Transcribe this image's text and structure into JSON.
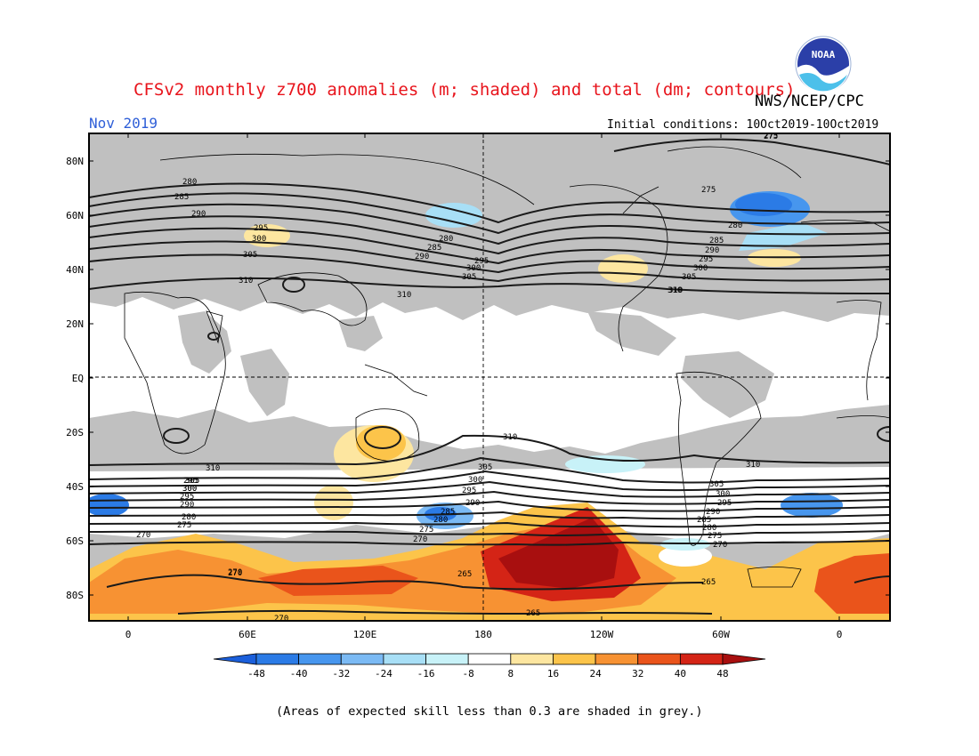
{
  "header": {
    "title": "CFSv2 monthly z700 anomalies (m; shaded) and total (dm; contours)",
    "agency": "NWS/NCEP/CPC",
    "logo_text": "NOAA",
    "month": "Nov 2019",
    "initial_conditions": "Initial conditions: 10Oct2019-10Oct2019"
  },
  "map": {
    "lat_labels": [
      "80N",
      "60N",
      "40N",
      "20N",
      "EQ",
      "20S",
      "40S",
      "60S",
      "80S"
    ],
    "lon_labels": [
      "0",
      "60E",
      "120E",
      "180",
      "120W",
      "60W",
      "0"
    ],
    "contour_levels": [
      265,
      270,
      275,
      280,
      285,
      290,
      295,
      300,
      305,
      310
    ],
    "contour_labels": [
      "275",
      "280",
      "285",
      "290",
      "295",
      "300",
      "305",
      "310",
      "310",
      "310",
      "285",
      "290",
      "295",
      "300",
      "305",
      "280",
      "285",
      "290",
      "295",
      "300",
      "305",
      "310",
      "275",
      "275",
      "280",
      "295",
      "300",
      "305",
      "310",
      "305",
      "300",
      "295",
      "290",
      "280",
      "275",
      "270",
      "270",
      "265",
      "265",
      "265",
      "270",
      "310",
      "305",
      "300",
      "295",
      "290",
      "285",
      "280",
      "275",
      "270",
      "310",
      "305",
      "300",
      "295",
      "290",
      "285",
      "280",
      "275",
      "270",
      "270"
    ]
  },
  "colorbar": {
    "labels": [
      "-48",
      "-40",
      "-32",
      "-24",
      "-16",
      "-8",
      "8",
      "16",
      "24",
      "32",
      "40",
      "48"
    ],
    "colors": [
      "#1b5fdb",
      "#2b7be6",
      "#4796ee",
      "#7bbaf4",
      "#a8dff6",
      "#c8f2f8",
      "#ffffff",
      "#fde6a0",
      "#fcc44a",
      "#f79233",
      "#ea541b",
      "#d42416",
      "#a80f0f"
    ],
    "grey": "#c0c0c0"
  },
  "footnote": "(Areas of expected skill less than 0.3 are shaded in grey.)"
}
